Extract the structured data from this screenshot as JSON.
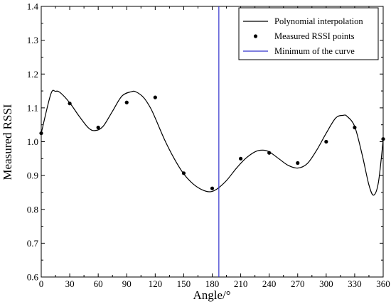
{
  "chart_data": {
    "type": "line",
    "xlabel": "Angle/°",
    "ylabel": "Measured RSSI",
    "xlim": [
      0,
      360
    ],
    "ylim": [
      0.6,
      1.4
    ],
    "xticks": [
      0,
      30,
      60,
      90,
      120,
      150,
      180,
      210,
      240,
      270,
      300,
      330,
      360
    ],
    "yticks": [
      0.6,
      0.7,
      0.8,
      0.9,
      1.0,
      1.1,
      1.2,
      1.3,
      1.4
    ],
    "xtick_labels": [
      "0",
      "30",
      "60",
      "90",
      "120",
      "150",
      "180",
      "210",
      "240",
      "270",
      "300",
      "330",
      "360"
    ],
    "ytick_labels": [
      "0.6",
      "0.7",
      "0.8",
      "0.9",
      "1.0",
      "1.1",
      "1.2",
      "1.3",
      "1.4"
    ],
    "grid": false,
    "legend_position": "top-right",
    "series": [
      {
        "name": "Polynomial interpolation",
        "kind": "line",
        "color": "#000000",
        "x": [
          0,
          10,
          15,
          20,
          30,
          40,
          50,
          57,
          65,
          75,
          85,
          95,
          100,
          108,
          115,
          120,
          130,
          140,
          150,
          160,
          170,
          178,
          185,
          195,
          205,
          215,
          225,
          233,
          240,
          250,
          260,
          270,
          280,
          290,
          300,
          310,
          318,
          322,
          330,
          338,
          345,
          350,
          355,
          360
        ],
        "y": [
          1.025,
          1.14,
          1.149,
          1.145,
          1.115,
          1.075,
          1.04,
          1.033,
          1.045,
          1.09,
          1.135,
          1.148,
          1.147,
          1.13,
          1.1,
          1.07,
          1.005,
          0.95,
          0.905,
          0.875,
          0.857,
          0.852,
          0.86,
          0.885,
          0.92,
          0.95,
          0.97,
          0.975,
          0.97,
          0.95,
          0.93,
          0.922,
          0.935,
          0.975,
          1.025,
          1.07,
          1.078,
          1.075,
          1.045,
          0.96,
          0.872,
          0.842,
          0.88,
          1.005
        ]
      },
      {
        "name": "Measured RSSI points",
        "kind": "scatter",
        "color": "#000000",
        "x": [
          0,
          30,
          60,
          90,
          120,
          150,
          180,
          210,
          240,
          270,
          300,
          330,
          360
        ],
        "y": [
          1.025,
          1.113,
          1.042,
          1.116,
          1.131,
          0.907,
          0.862,
          0.95,
          0.967,
          0.937,
          1.0,
          1.042,
          1.008
        ]
      },
      {
        "name": "Minimum of the curve",
        "kind": "vline",
        "color": "#3333cc",
        "x": 187
      }
    ]
  }
}
